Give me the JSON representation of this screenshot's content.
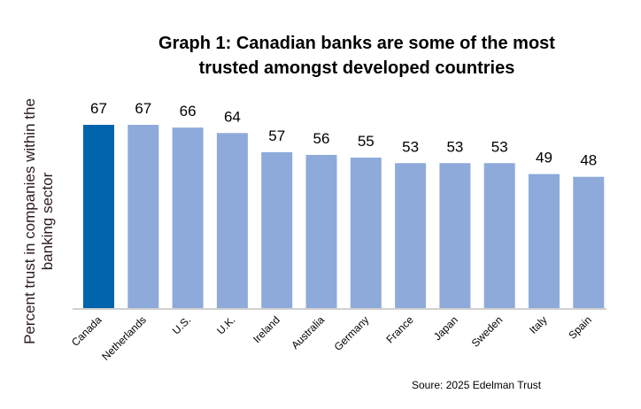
{
  "chart_data": {
    "type": "bar",
    "title_lines": [
      "Graph 1: Canadian banks are some of the most",
      "trusted amongst developed countries"
    ],
    "xlabel": "",
    "ylabel": "Percent trust in companies within the banking sector",
    "categories": [
      "Canada",
      "Netherlands",
      "U.S.",
      "U.K.",
      "Ireland",
      "Australia",
      "Germany",
      "France",
      "Japan",
      "Sweden",
      "Italy",
      "Spain"
    ],
    "values": [
      67,
      67,
      66,
      64,
      57,
      56,
      55,
      53,
      53,
      53,
      49,
      48
    ],
    "highlight": "Canada",
    "colors": {
      "highlight": "#0064AA",
      "default": "#8EAADA",
      "axis": "#D0D0D0"
    },
    "ylim": [
      0,
      67
    ],
    "grid": false,
    "data_labels": true,
    "source": "Soure: 2025 Edelman Trust"
  }
}
